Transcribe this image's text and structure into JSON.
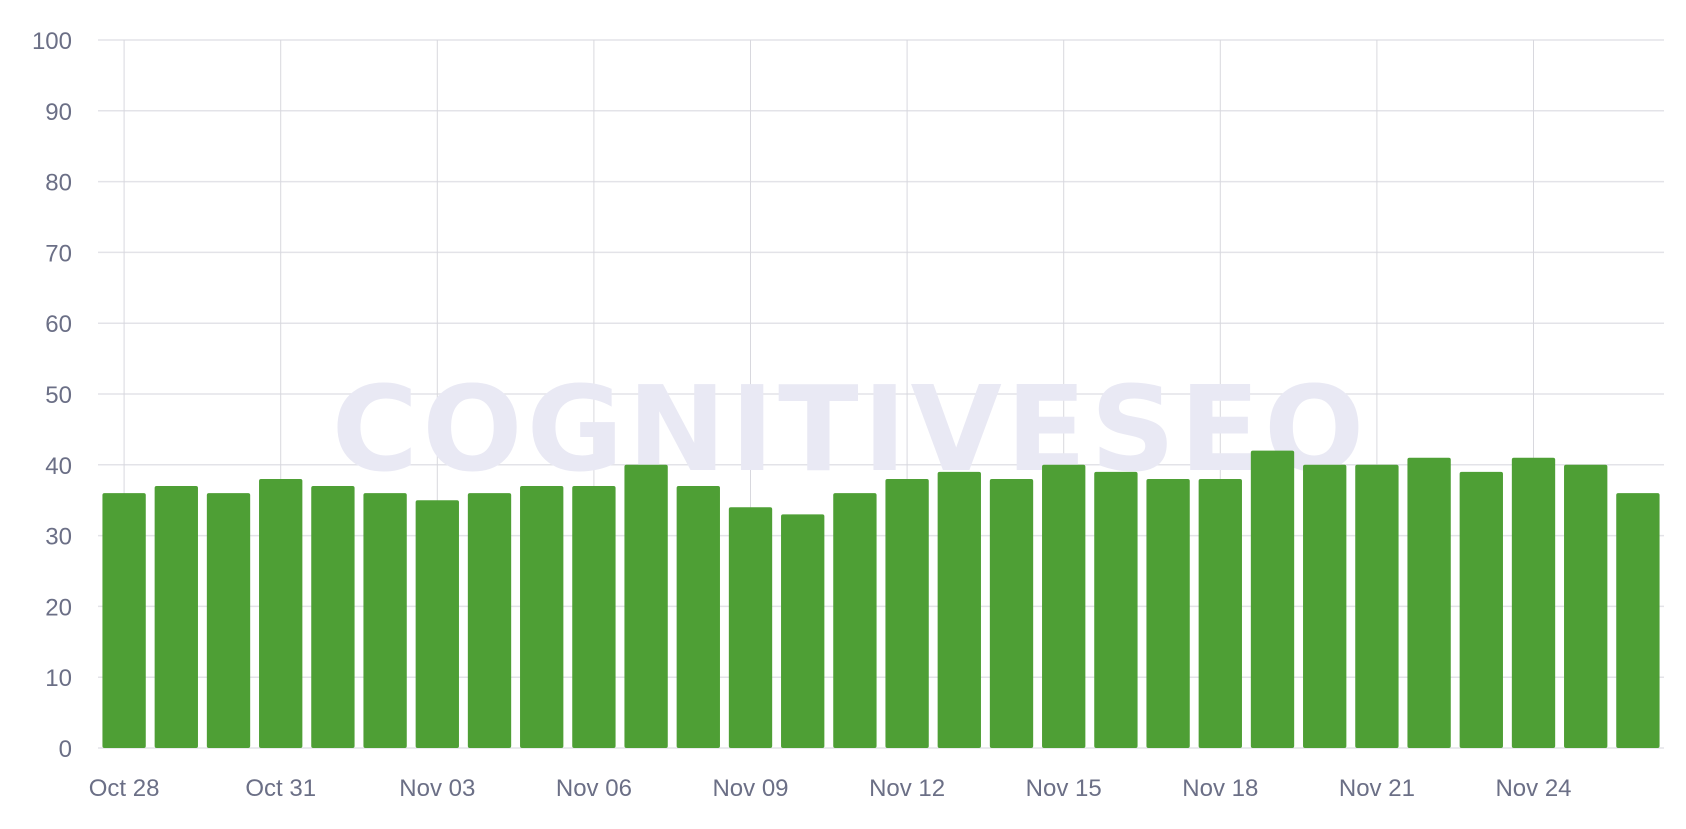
{
  "watermark": "COGNITIVESEO",
  "chart_data": {
    "type": "bar",
    "title": "",
    "xlabel": "",
    "ylabel": "",
    "ylim": [
      0,
      100
    ],
    "yticks": [
      0,
      10,
      20,
      30,
      40,
      50,
      60,
      70,
      80,
      90,
      100
    ],
    "grid": true,
    "legend": "none",
    "bar_color": "#4e9f35",
    "categories": [
      "Oct 28",
      "Oct 29",
      "Oct 30",
      "Oct 31",
      "Nov 01",
      "Nov 02",
      "Nov 03",
      "Nov 04",
      "Nov 05",
      "Nov 06",
      "Nov 07",
      "Nov 08",
      "Nov 09",
      "Nov 10",
      "Nov 11",
      "Nov 12",
      "Nov 13",
      "Nov 14",
      "Nov 15",
      "Nov 16",
      "Nov 17",
      "Nov 18",
      "Nov 19",
      "Nov 20",
      "Nov 21",
      "Nov 22",
      "Nov 23",
      "Nov 24",
      "Nov 25",
      "Nov 26"
    ],
    "x_tick_labels": [
      "Oct 28",
      "Oct 31",
      "Nov 03",
      "Nov 06",
      "Nov 09",
      "Nov 12",
      "Nov 15",
      "Nov 18",
      "Nov 21",
      "Nov 24"
    ],
    "values": [
      36,
      37,
      36,
      38,
      37,
      36,
      35,
      36,
      37,
      37,
      40,
      37,
      34,
      33,
      36,
      38,
      39,
      38,
      40,
      39,
      38,
      38,
      42,
      40,
      40,
      41,
      39,
      41,
      40,
      36
    ]
  }
}
